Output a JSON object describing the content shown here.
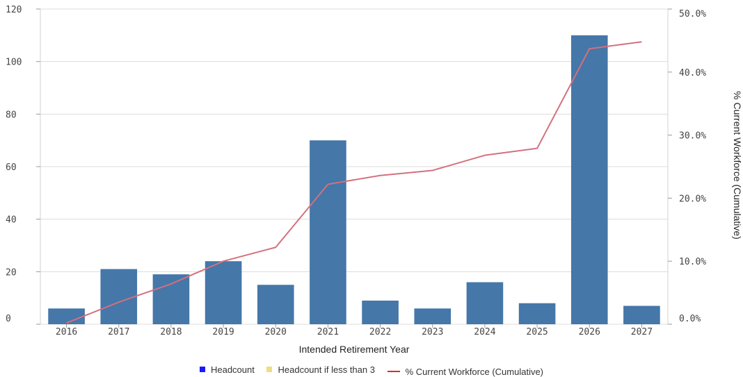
{
  "chart_data": {
    "type": "bar",
    "xlabel": "Intended Retirement Year",
    "ylabel": "",
    "y2label": "% Current Workforce (Cumulative)",
    "categories": [
      "2016",
      "2017",
      "2018",
      "2019",
      "2020",
      "2021",
      "2022",
      "2023",
      "2024",
      "2025",
      "2026",
      "2027"
    ],
    "ylim": [
      0,
      120
    ],
    "yticks": [
      "0",
      "20",
      "40",
      "60",
      "80",
      "100",
      "120"
    ],
    "y2lim": [
      0,
      50
    ],
    "y2ticks": [
      "0.0%",
      "10.0%",
      "20.0%",
      "30.0%",
      "40.0%",
      "50.0%"
    ],
    "series": [
      {
        "name": "Headcount",
        "type": "bar",
        "color": "#4577a9",
        "values": [
          6,
          21,
          19,
          24,
          15,
          70,
          9,
          6,
          16,
          8,
          110,
          7
        ]
      },
      {
        "name": "Headcount if less than 3",
        "type": "bar",
        "color": "#f0dc82",
        "values": [
          0,
          0,
          0,
          0,
          0,
          0,
          0,
          0,
          0,
          0,
          0,
          0
        ]
      },
      {
        "name": "% Current Workforce (Cumulative)",
        "type": "line",
        "axis": "right",
        "color": "#d4707e",
        "values": [
          0.2,
          3.5,
          6.4,
          10.0,
          12.2,
          22.2,
          23.6,
          24.4,
          26.8,
          27.9,
          43.7,
          44.8
        ]
      }
    ],
    "grid": true,
    "legend": "bottom-center"
  },
  "legend": {
    "items": [
      {
        "label": "Headcount",
        "color": "#1a1aff",
        "shape": "square"
      },
      {
        "label": "Headcount if less than 3",
        "color": "#f0dc82",
        "shape": "square"
      },
      {
        "label": "% Current Workforce (Cumulative)",
        "color": "#e3262e",
        "shape": "line"
      }
    ]
  }
}
